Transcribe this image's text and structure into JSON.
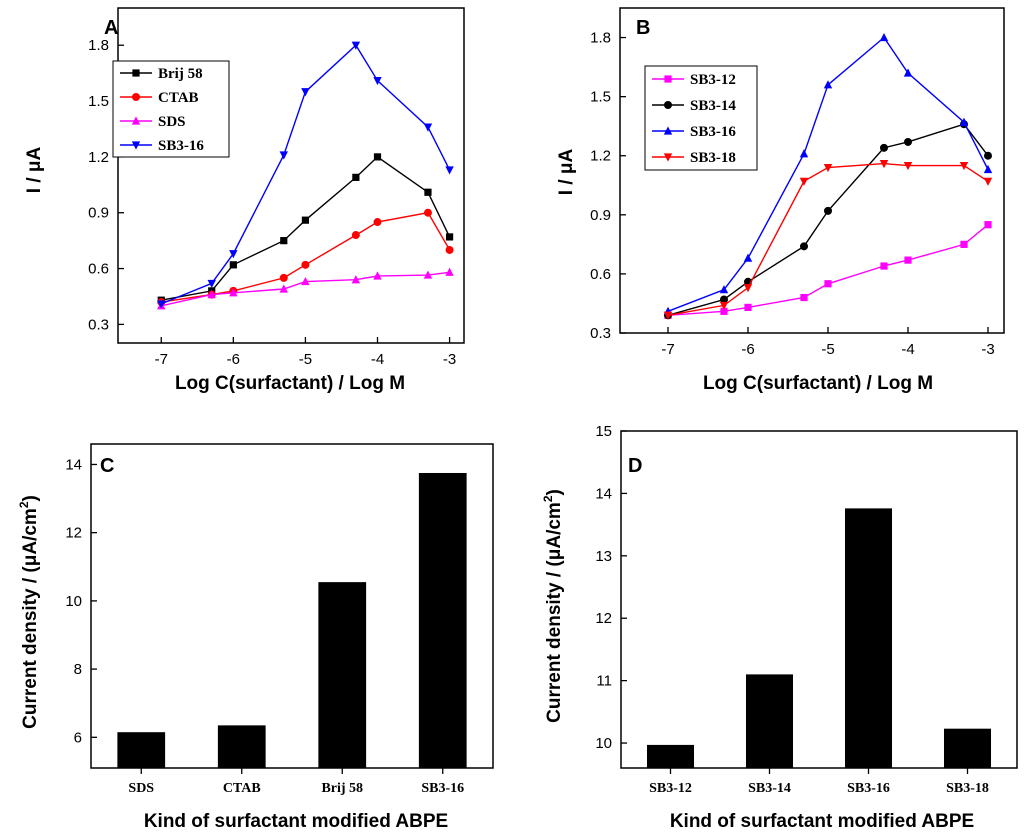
{
  "chart_data": [
    {
      "panel": "A",
      "type": "line",
      "xlabel": "Log C(surfactant) / Log M",
      "ylabel": "I / μA",
      "xlim": [
        -7.6,
        -2.8
      ],
      "ylim": [
        0.2,
        2.0
      ],
      "xticks": [
        -7,
        -6,
        -5,
        -4,
        -3
      ],
      "xtick_labels": [
        "-7",
        "-6",
        "-5",
        "-4",
        "-3"
      ],
      "yticks": [
        0.3,
        0.6,
        0.9,
        1.2,
        1.5,
        1.8
      ],
      "ytick_labels": [
        "0.3",
        "0.6",
        "0.9",
        "1.2",
        "1.5",
        "1.8"
      ],
      "legend_position": "top-left",
      "series": [
        {
          "name": "Brij 58",
          "color": "#000000",
          "marker": "square",
          "x": [
            -7,
            -6.3,
            -6,
            -5.3,
            -5,
            -4.3,
            -4,
            -3.3,
            -3
          ],
          "y": [
            0.43,
            0.48,
            0.62,
            0.75,
            0.86,
            1.09,
            1.2,
            1.01,
            0.77
          ]
        },
        {
          "name": "CTAB",
          "color": "#ff0000",
          "marker": "circle",
          "x": [
            -7,
            -6.3,
            -6,
            -5.3,
            -5,
            -4.3,
            -4,
            -3.3,
            -3
          ],
          "y": [
            0.42,
            0.46,
            0.48,
            0.55,
            0.62,
            0.78,
            0.85,
            0.9,
            0.7
          ]
        },
        {
          "name": "SDS",
          "color": "#ff00ff",
          "marker": "triangle-up",
          "x": [
            -7,
            -6.3,
            -6,
            -5.3,
            -5,
            -4.3,
            -4,
            -3.3,
            -3
          ],
          "y": [
            0.4,
            0.46,
            0.47,
            0.49,
            0.53,
            0.54,
            0.56,
            0.565,
            0.58
          ]
        },
        {
          "name": "SB3-16",
          "color": "#0000ff",
          "marker": "triangle-down",
          "x": [
            -7,
            -6.3,
            -6,
            -5.3,
            -5,
            -4.3,
            -4,
            -3.3,
            -3
          ],
          "y": [
            0.41,
            0.52,
            0.68,
            1.21,
            1.55,
            1.8,
            1.61,
            1.36,
            1.13
          ]
        }
      ]
    },
    {
      "panel": "B",
      "type": "line",
      "xlabel": "Log C(surfactant) / Log M",
      "ylabel": "I / μA",
      "xlim": [
        -7.6,
        -2.8
      ],
      "ylim": [
        0.3,
        1.95
      ],
      "xticks": [
        -7,
        -6,
        -5,
        -4,
        -3
      ],
      "xtick_labels": [
        "-7",
        "-6",
        "-5",
        "-4",
        "-3"
      ],
      "yticks": [
        0.3,
        0.6,
        0.9,
        1.2,
        1.5,
        1.8
      ],
      "ytick_labels": [
        "0.3",
        "0.6",
        "0.9",
        "1.2",
        "1.5",
        "1.8"
      ],
      "legend_position": "top-left",
      "series": [
        {
          "name": "SB3-12",
          "color": "#ff00ff",
          "marker": "square",
          "x": [
            -7,
            -6.3,
            -6,
            -5.3,
            -5,
            -4.3,
            -4,
            -3.3,
            -3
          ],
          "y": [
            0.39,
            0.41,
            0.43,
            0.48,
            0.55,
            0.64,
            0.67,
            0.75,
            0.85
          ]
        },
        {
          "name": "SB3-14",
          "color": "#000000",
          "marker": "circle",
          "x": [
            -7,
            -6.3,
            -6,
            -5.3,
            -5,
            -4.3,
            -4,
            -3.3,
            -3
          ],
          "y": [
            0.39,
            0.47,
            0.56,
            0.74,
            0.92,
            1.24,
            1.27,
            1.36,
            1.2
          ]
        },
        {
          "name": "SB3-16",
          "color": "#0000ff",
          "marker": "triangle-up",
          "x": [
            -7,
            -6.3,
            -6,
            -5.3,
            -5,
            -4.3,
            -4,
            -3.3,
            -3
          ],
          "y": [
            0.41,
            0.52,
            0.68,
            1.21,
            1.56,
            1.8,
            1.62,
            1.37,
            1.13
          ]
        },
        {
          "name": "SB3-18",
          "color": "#ff0000",
          "marker": "triangle-down",
          "x": [
            -7,
            -6.3,
            -6,
            -5.3,
            -5,
            -4.3,
            -4,
            -3.3,
            -3
          ],
          "y": [
            0.39,
            0.44,
            0.53,
            1.07,
            1.14,
            1.16,
            1.15,
            1.15,
            1.07
          ]
        }
      ]
    },
    {
      "panel": "C",
      "type": "bar",
      "xlabel": "Kind of surfactant modified ABPE",
      "ylabel": "Current density / (μA/cm",
      "ylabel_superscript": "2",
      "ylabel_close": ")",
      "ylim": [
        5.1,
        14.6
      ],
      "yticks": [
        6,
        8,
        10,
        12,
        14
      ],
      "ytick_labels": [
        "6",
        "8",
        "10",
        "12",
        "14"
      ],
      "bar_color": "#000000",
      "categories": [
        "SDS",
        "CTAB",
        "Brij 58",
        "SB3-16"
      ],
      "values": [
        6.15,
        6.35,
        10.55,
        13.75
      ]
    },
    {
      "panel": "D",
      "type": "bar",
      "xlabel": "Kind of surfactant modified ABPE",
      "ylabel": "Current density / (μA/cm",
      "ylabel_superscript": "2",
      "ylabel_close": ")",
      "ylim": [
        9.6,
        15
      ],
      "yticks": [
        10,
        11,
        12,
        13,
        14,
        15
      ],
      "ytick_labels": [
        "10",
        "11",
        "12",
        "13",
        "14",
        "15"
      ],
      "bar_color": "#000000",
      "categories": [
        "SB3-12",
        "SB3-14",
        "SB3-16",
        "SB3-18"
      ],
      "values": [
        9.97,
        11.1,
        13.76,
        10.23
      ]
    }
  ]
}
